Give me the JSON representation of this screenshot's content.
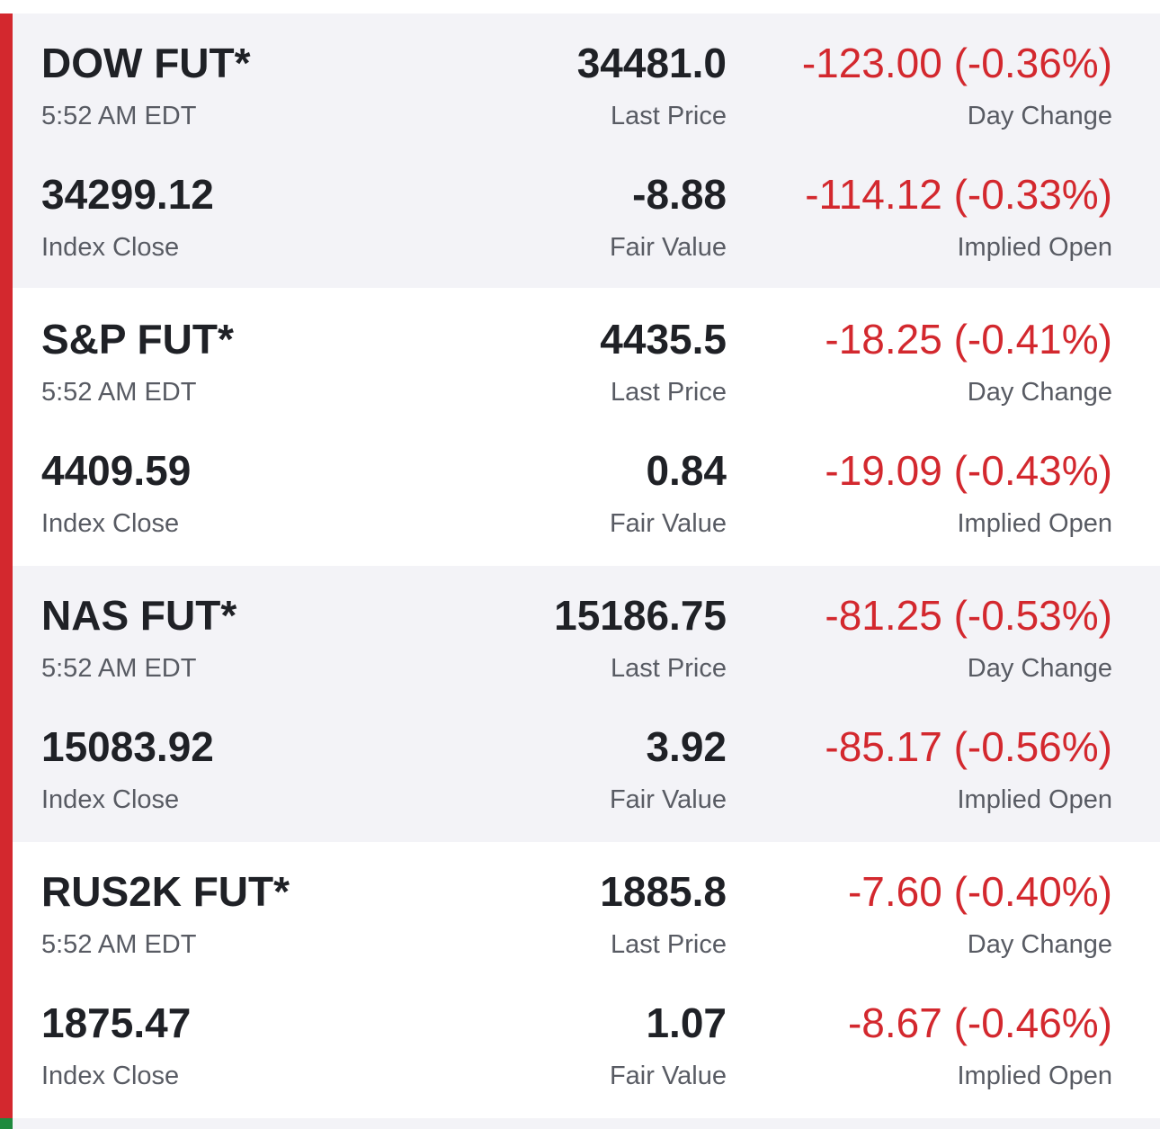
{
  "colors": {
    "negative": "#d3282e",
    "positive": "#1e8a3e",
    "text_primary": "#1f2126",
    "text_secondary": "#585b63",
    "row_shaded": "#f3f3f7"
  },
  "rows": [
    {
      "name": "DOW FUT*",
      "time": "5:52 AM EDT",
      "last_price": "34481.0",
      "last_price_label": "Last Price",
      "day_change": "-123.00 (-0.36%)",
      "day_change_label": "Day Change",
      "index_close": "34299.12",
      "index_close_label": "Index Close",
      "fair_value": "-8.88",
      "fair_value_label": "Fair Value",
      "implied_open": "-114.12 (-0.33%)",
      "implied_open_label": "Implied Open"
    },
    {
      "name": "S&P FUT*",
      "time": "5:52 AM EDT",
      "last_price": "4435.5",
      "last_price_label": "Last Price",
      "day_change": "-18.25 (-0.41%)",
      "day_change_label": "Day Change",
      "index_close": "4409.59",
      "index_close_label": "Index Close",
      "fair_value": "0.84",
      "fair_value_label": "Fair Value",
      "implied_open": "-19.09 (-0.43%)",
      "implied_open_label": "Implied Open"
    },
    {
      "name": "NAS FUT*",
      "time": "5:52 AM EDT",
      "last_price": "15186.75",
      "last_price_label": "Last Price",
      "day_change": "-81.25 (-0.53%)",
      "day_change_label": "Day Change",
      "index_close": "15083.92",
      "index_close_label": "Index Close",
      "fair_value": "3.92",
      "fair_value_label": "Fair Value",
      "implied_open": "-85.17 (-0.56%)",
      "implied_open_label": "Implied Open"
    },
    {
      "name": "RUS2K FUT*",
      "time": "5:52 AM EDT",
      "last_price": "1885.8",
      "last_price_label": "Last Price",
      "day_change": "-7.60 (-0.40%)",
      "day_change_label": "Day Change",
      "index_close": "1875.47",
      "index_close_label": "Index Close",
      "fair_value": "1.07",
      "fair_value_label": "Fair Value",
      "implied_open": "-8.67 (-0.46%)",
      "implied_open_label": "Implied Open"
    }
  ]
}
